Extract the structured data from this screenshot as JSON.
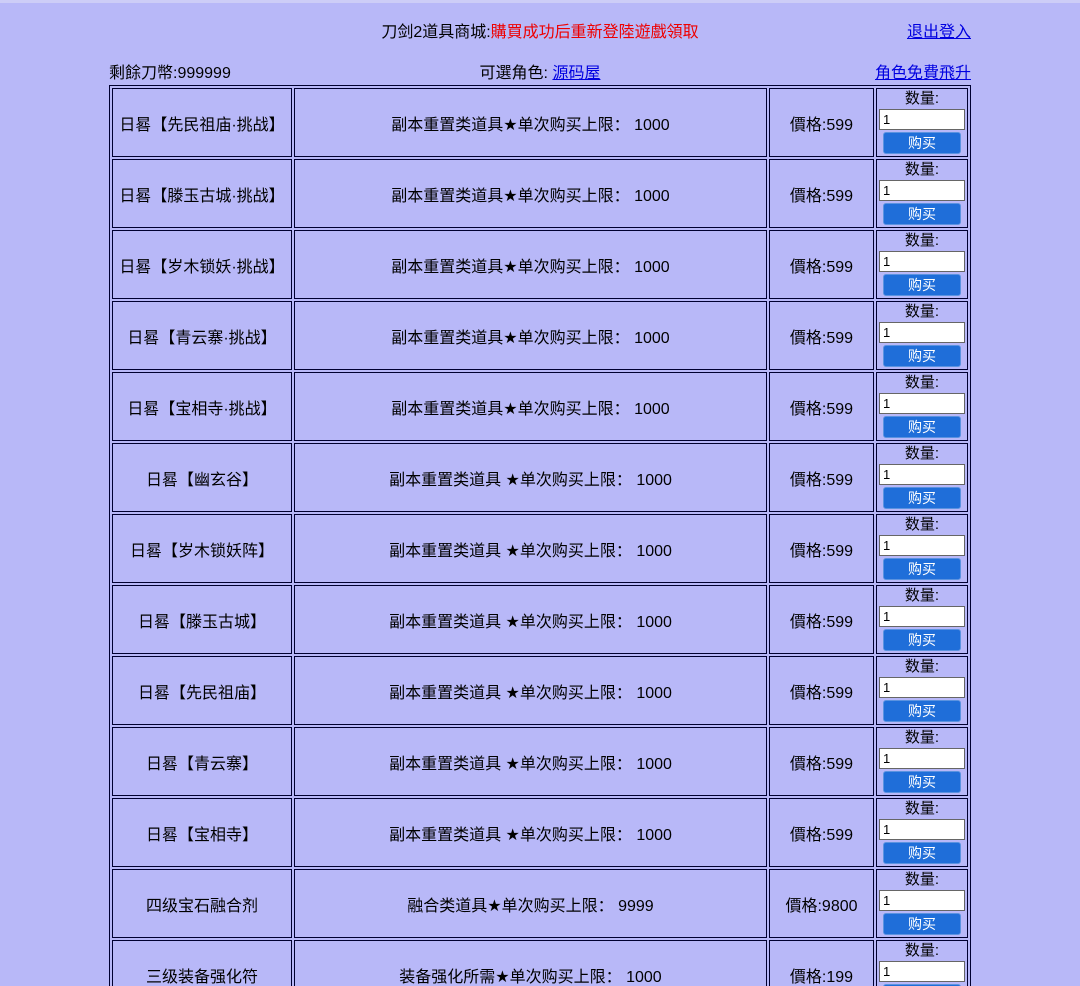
{
  "header": {
    "title_black": "刀剑2道具商城:",
    "title_red": "購買成功后重新登陸遊戲領取",
    "logout_link": "退出登入",
    "balance_text": "剩餘刀幣:999999",
    "role_label": "可選角色:",
    "role_link": "源码屋",
    "ascend_link": "角色免費飛升"
  },
  "shop": {
    "qty_label": "数量:",
    "qty_value": "1",
    "buy_label": "购买",
    "items": [
      {
        "name": "日晷【先民祖庙·挑战】",
        "desc": "副本重置类道具★单次购买上限： 1000",
        "price": "價格:599"
      },
      {
        "name": "日晷【滕玉古城·挑战】",
        "desc": "副本重置类道具★单次购买上限： 1000",
        "price": "價格:599"
      },
      {
        "name": "日晷【岁木锁妖·挑战】",
        "desc": "副本重置类道具★单次购买上限： 1000",
        "price": "價格:599"
      },
      {
        "name": "日晷【青云寨·挑战】",
        "desc": "副本重置类道具★单次购买上限： 1000",
        "price": "價格:599"
      },
      {
        "name": "日晷【宝相寺·挑战】",
        "desc": "副本重置类道具★单次购买上限： 1000",
        "price": "價格:599"
      },
      {
        "name": "日晷【幽玄谷】",
        "desc": "副本重置类道具 ★单次购买上限： 1000",
        "price": "價格:599"
      },
      {
        "name": "日晷【岁木锁妖阵】",
        "desc": "副本重置类道具 ★单次购买上限： 1000",
        "price": "價格:599"
      },
      {
        "name": "日晷【滕玉古城】",
        "desc": "副本重置类道具 ★单次购买上限： 1000",
        "price": "價格:599"
      },
      {
        "name": "日晷【先民祖庙】",
        "desc": "副本重置类道具 ★单次购买上限： 1000",
        "price": "價格:599"
      },
      {
        "name": "日晷【青云寨】",
        "desc": "副本重置类道具 ★单次购买上限： 1000",
        "price": "價格:599"
      },
      {
        "name": "日晷【宝相寺】",
        "desc": "副本重置类道具 ★单次购买上限： 1000",
        "price": "價格:599"
      },
      {
        "name": "四级宝石融合剂",
        "desc": "融合类道具★单次购买上限： 9999",
        "price": "價格:9800"
      },
      {
        "name": "三级装备强化符",
        "desc": "装备强化所需★单次购买上限： 1000",
        "price": "價格:199"
      }
    ]
  },
  "colors": {
    "background": "#b8b8f8",
    "table_border": "#000030",
    "buy_button": "#1f6ed9",
    "link": "#0000e0",
    "title_warning_red": "#ee0000"
  }
}
